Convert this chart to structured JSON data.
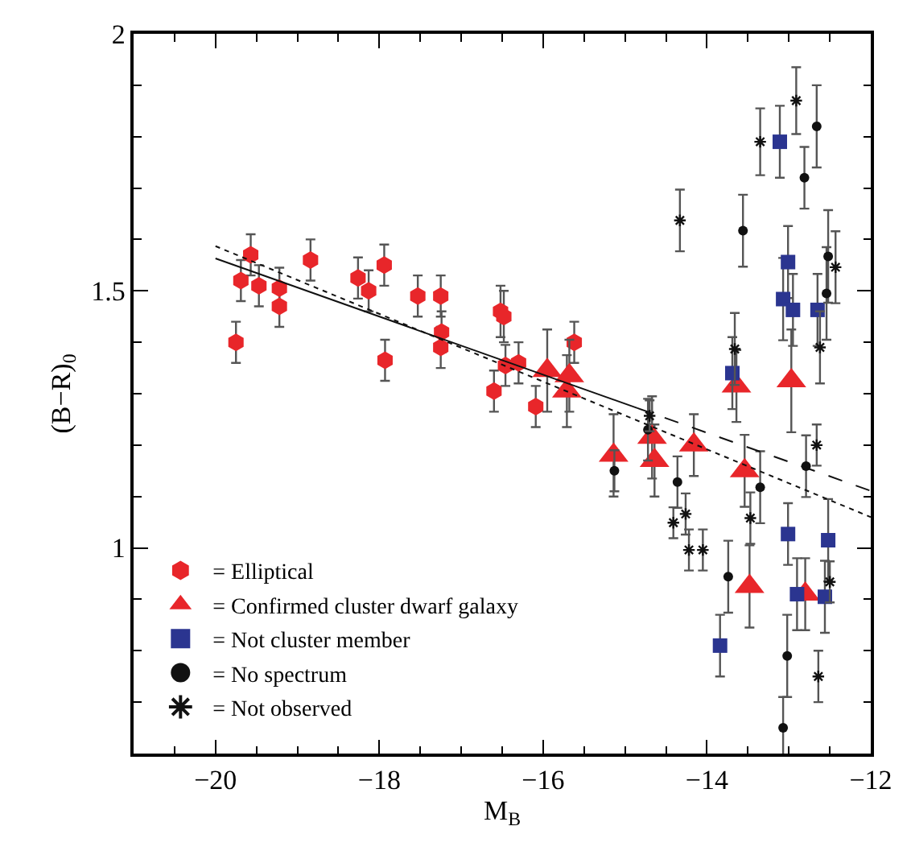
{
  "chart_data": {
    "type": "scatter",
    "xlabel": "M$_{B}$",
    "ylabel": "(B−R)$_{0}$",
    "xlim": [
      -21,
      -12
    ],
    "ylim": [
      0.6,
      2
    ],
    "xticks": [
      {
        "value": -20,
        "label": "−20"
      },
      {
        "value": -18,
        "label": "−18"
      },
      {
        "value": -16,
        "label": "−16"
      },
      {
        "value": -14,
        "label": "−14"
      },
      {
        "value": -12,
        "label": "−12"
      }
    ],
    "yticks": [
      1,
      1.5,
      2
    ],
    "legend": "bottom left",
    "series": [
      {
        "name": "= Elliptical",
        "color": "#e8262a",
        "x": [
          -19.75,
          -19.69,
          -19.57,
          -19.47,
          -19.22,
          -19.22,
          -18.84,
          -18.26,
          -18.13,
          -17.94,
          -17.93,
          -17.53,
          -17.25,
          -17.24,
          -17.25,
          -16.52,
          -16.48,
          -16.46,
          -16.3,
          -16.6,
          -16.09,
          -15.62
        ],
        "values": [
          1.4,
          1.52,
          1.57,
          1.51,
          1.505,
          1.47,
          1.56,
          1.525,
          1.5,
          1.55,
          1.365,
          1.49,
          1.49,
          1.42,
          1.39,
          1.46,
          1.45,
          1.355,
          1.36,
          1.305,
          1.275,
          1.4
        ],
        "errors": [
          0.04,
          0.04,
          0.04,
          0.04,
          0.04,
          0.04,
          0.04,
          0.04,
          0.04,
          0.04,
          0.04,
          0.04,
          0.04,
          0.04,
          0.04,
          0.05,
          0.05,
          0.04,
          0.04,
          0.04,
          0.04,
          0.04
        ]
      },
      {
        "name": "= Confirmed cluster dwarf galaxy",
        "marker": "triangle",
        "color": "#e8262a",
        "x": [
          -15.95,
          -15.68,
          -15.71,
          -15.14,
          -14.67,
          -14.64,
          -14.16,
          -13.64,
          -13.54,
          -13.48,
          -12.97,
          -12.8
        ],
        "values": [
          1.345,
          1.335,
          1.305,
          1.18,
          1.215,
          1.17,
          1.2,
          1.315,
          1.15,
          0.925,
          1.325,
          0.91
        ],
        "errors": [
          0.08,
          0.07,
          0.07,
          0.08,
          0.08,
          0.07,
          0.06,
          0.07,
          0.07,
          0.08,
          0.1,
          0.07
        ]
      },
      {
        "name": "= Not cluster member",
        "marker": "square",
        "color": "#2b3590",
        "x": [
          -13.11,
          -13.01,
          -13.07,
          -12.95,
          -12.65,
          -13.69,
          -13.01,
          -12.52,
          -12.56,
          -12.9,
          -13.84
        ],
        "values": [
          1.79,
          1.556,
          1.484,
          1.463,
          1.463,
          1.34,
          1.027,
          1.015,
          0.905,
          0.91,
          0.81
        ],
        "errors": [
          0.07,
          0.07,
          0.08,
          0.07,
          0.07,
          0.07,
          0.06,
          0.08,
          0.07,
          0.07,
          0.06
        ]
      },
      {
        "name": "= No spectrum",
        "marker": "circle",
        "color": "#111111",
        "x": [
          -13.56,
          -12.81,
          -12.66,
          -12.52,
          -12.54,
          -14.72,
          -14.36,
          -13.35,
          -12.79,
          -13.74,
          -13.02,
          -13.07,
          -15.13
        ],
        "values": [
          1.617,
          1.72,
          1.82,
          1.567,
          1.495,
          1.23,
          1.128,
          1.118,
          1.159,
          0.944,
          0.79,
          0.65,
          1.15
        ],
        "errors": [
          0.07,
          0.06,
          0.08,
          0.09,
          0.09,
          0.06,
          0.05,
          0.07,
          0.06,
          0.07,
          0.08,
          0.06,
          0.04
        ]
      },
      {
        "name": "= Not observed",
        "marker": "cross",
        "color": "#111111",
        "x": [
          -14.33,
          -13.35,
          -12.91,
          -12.43,
          -12.62,
          -13.66,
          -12.66,
          -14.41,
          -14.26,
          -14.22,
          -14.05,
          -13.47,
          -12.5,
          -12.64,
          -14.7
        ],
        "values": [
          1.637,
          1.79,
          1.87,
          1.546,
          1.39,
          1.387,
          1.2,
          1.049,
          1.066,
          0.996,
          0.996,
          1.058,
          0.934,
          0.75,
          1.257
        ],
        "errors": [
          0.06,
          0.065,
          0.065,
          0.07,
          0.07,
          0.07,
          0.04,
          0.03,
          0.04,
          0.04,
          0.04,
          0.05,
          0.04,
          0.05,
          0.03
        ]
      },
      {
        "type": "line",
        "line_style": "solid",
        "color": "#111111",
        "x": [
          -20,
          -14.85
        ],
        "values": [
          1.563,
          1.272
        ]
      },
      {
        "type": "line",
        "line_style": "dashed",
        "color": "#111111",
        "x": [
          -14.85,
          -12
        ],
        "values": [
          1.272,
          1.111
        ]
      },
      {
        "type": "line",
        "line_style": "dotted",
        "color": "#111111",
        "x": [
          -20,
          -12
        ],
        "values": [
          1.587,
          1.06
        ]
      }
    ]
  }
}
